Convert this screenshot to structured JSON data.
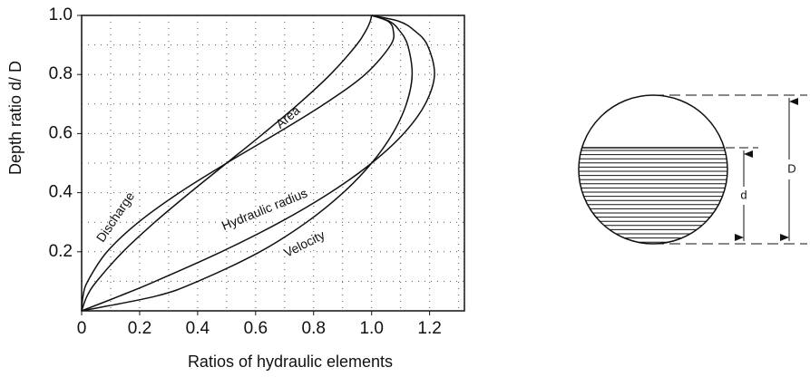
{
  "chart_data": {
    "type": "line",
    "xlabel": "Ratios of hydraulic elements",
    "ylabel": "Depth ratio d/ D",
    "xlim": [
      0,
      1.32
    ],
    "ylim": [
      0,
      1
    ],
    "xticks": [
      0,
      0.2,
      0.4,
      0.6,
      0.8,
      {
        "value": 1,
        "label": "1.0"
      },
      1.2
    ],
    "yticks": [
      0.2,
      0.4,
      0.6,
      0.8,
      {
        "value": 1,
        "label": "1.0"
      }
    ],
    "grid": true,
    "grid_xticks": [
      0.1,
      0.2,
      0.3,
      0.4,
      0.5,
      0.6,
      0.7,
      0.8,
      0.9,
      1.0,
      1.1,
      1.2,
      1.3
    ],
    "grid_yticks": [
      0.1,
      0.2,
      0.3,
      0.4,
      0.5,
      0.6,
      0.7,
      0.8,
      0.9
    ],
    "series": [
      {
        "name": "Discharge",
        "color": "#111111",
        "x": [
          0,
          0.0048,
          0.021,
          0.0876,
          0.196,
          0.337,
          0.5,
          0.672,
          0.837,
          0.9775,
          1.0658,
          1.0745,
          1.0567,
          1
        ],
        "values": [
          0,
          0.05,
          0.1,
          0.2,
          0.3,
          0.4,
          0.5,
          0.6,
          0.7,
          0.8,
          0.9,
          0.95,
          0.98,
          1
        ]
      },
      {
        "name": "Area",
        "color": "#111111",
        "x": [
          0,
          0.0187,
          0.052,
          0.1424,
          0.2523,
          0.3735,
          0.5,
          0.6265,
          0.7477,
          0.8576,
          0.948,
          0.9813,
          0.9952,
          1
        ],
        "values": [
          0,
          0.05,
          0.1,
          0.2,
          0.3,
          0.4,
          0.5,
          0.6,
          0.7,
          0.8,
          0.9,
          0.95,
          0.98,
          1
        ]
      },
      {
        "name": "Hydraulic radius",
        "color": "#111111",
        "x": [
          0,
          0.1303,
          0.254,
          0.482,
          0.684,
          0.857,
          1,
          1.1106,
          1.1849,
          1.2168,
          1.1921,
          1.1458,
          1.0941,
          1
        ],
        "values": [
          0,
          0.05,
          0.1,
          0.2,
          0.3,
          0.4,
          0.5,
          0.6,
          0.7,
          0.8,
          0.9,
          0.95,
          0.98,
          1
        ]
      },
      {
        "name": "Velocity",
        "color": "#111111",
        "x": [
          0,
          0.257,
          0.401,
          0.615,
          0.776,
          0.902,
          1,
          1.0725,
          1.1198,
          1.1398,
          1.1243,
          1.095,
          1.0618,
          1
        ],
        "values": [
          0,
          0.05,
          0.1,
          0.2,
          0.3,
          0.4,
          0.5,
          0.6,
          0.7,
          0.8,
          0.9,
          0.95,
          0.98,
          1
        ]
      }
    ]
  },
  "diagram": {
    "full_depth_label": "D",
    "depth_label": "d"
  }
}
